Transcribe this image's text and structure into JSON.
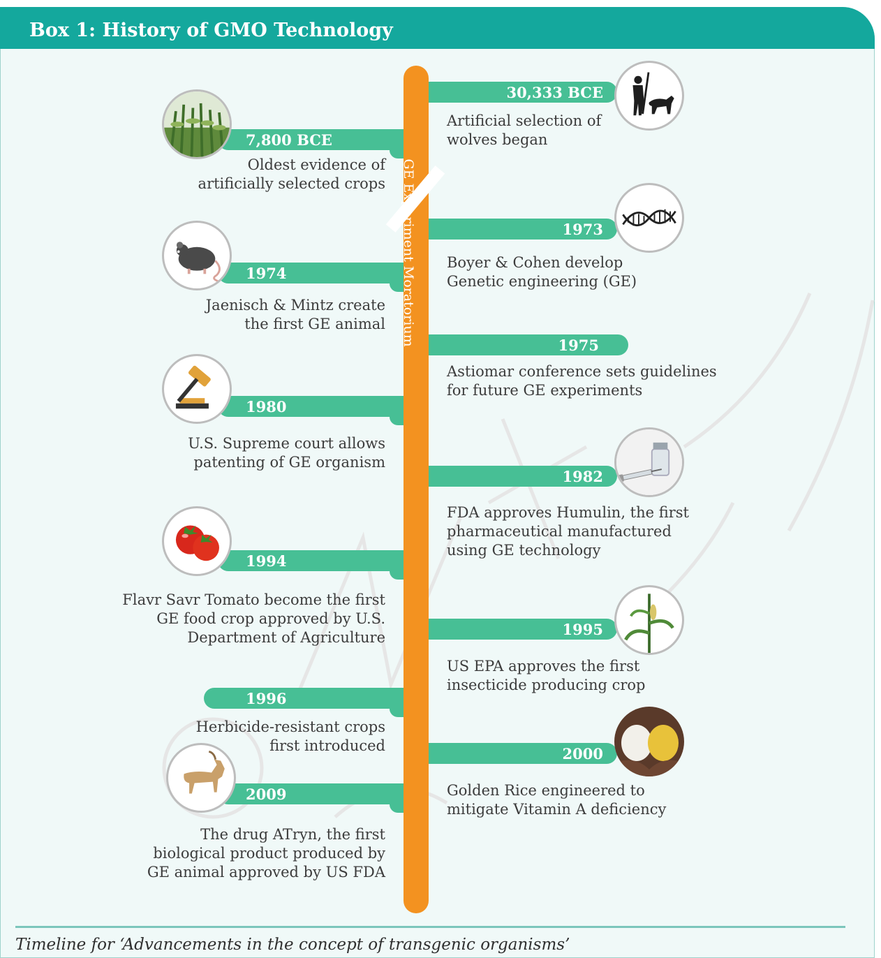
{
  "title": "Box 1: History of GMO Technology",
  "spine_label": "GE Experiment Moratorium",
  "caption": "Timeline for ‘Advancements in the concept of transgenic organisms’",
  "colors": {
    "teal_header": "#14a89d",
    "green_bar": "#47bf95",
    "orange_spine": "#f39220",
    "panel_bg": "#f0f9f8"
  },
  "events": [
    {
      "id": "30333bce",
      "year": "30,333 BCE",
      "side": "right",
      "icon": "hunter-wolf-icon",
      "lines": [
        "Artificial selection of",
        "wolves began"
      ]
    },
    {
      "id": "7800bce",
      "year": "7,800 BCE",
      "side": "left",
      "icon": "corn-field-icon",
      "lines": [
        "Oldest evidence of",
        "artificially selected crops"
      ]
    },
    {
      "id": "1973",
      "year": "1973",
      "side": "right",
      "icon": "dna-icon",
      "lines": [
        "Boyer & Cohen develop",
        "Genetic engineering (GE)"
      ]
    },
    {
      "id": "1974",
      "year": "1974",
      "side": "left",
      "icon": "mouse-icon",
      "lines": [
        "Jaenisch & Mintz create",
        "the first GE animal"
      ]
    },
    {
      "id": "1975",
      "year": "1975",
      "side": "right",
      "icon": "",
      "lines": [
        "Astiomar conference sets guidelines",
        "for future GE experiments"
      ]
    },
    {
      "id": "1980",
      "year": "1980",
      "side": "left",
      "icon": "gavel-icon",
      "lines": [
        "U.S. Supreme court allows",
        "patenting of GE organism"
      ]
    },
    {
      "id": "1982",
      "year": "1982",
      "side": "right",
      "icon": "vial-syringe-icon",
      "lines": [
        "FDA approves Humulin, the first",
        "pharmaceutical manufactured",
        "using GE technology"
      ]
    },
    {
      "id": "1994",
      "year": "1994",
      "side": "left",
      "icon": "tomato-icon",
      "lines": [
        "Flavr Savr Tomato become the first",
        "GE food crop approved by U.S.",
        "Department of Agriculture"
      ]
    },
    {
      "id": "1995",
      "year": "1995",
      "side": "right",
      "icon": "corn-plant-icon",
      "lines": [
        "US EPA approves the first",
        "insecticide producing crop"
      ]
    },
    {
      "id": "1996",
      "year": "1996",
      "side": "left",
      "icon": "",
      "lines": [
        "Herbicide-resistant crops",
        "first introduced"
      ]
    },
    {
      "id": "2000",
      "year": "2000",
      "side": "right",
      "icon": "rice-hands-icon",
      "lines": [
        "Golden Rice engineered to",
        "mitigate Vitamin A deficiency"
      ]
    },
    {
      "id": "2009",
      "year": "2009",
      "side": "left",
      "icon": "goat-icon",
      "lines": [
        "The drug ATryn, the first",
        "biological product produced by",
        "GE animal approved by US FDA"
      ]
    }
  ]
}
